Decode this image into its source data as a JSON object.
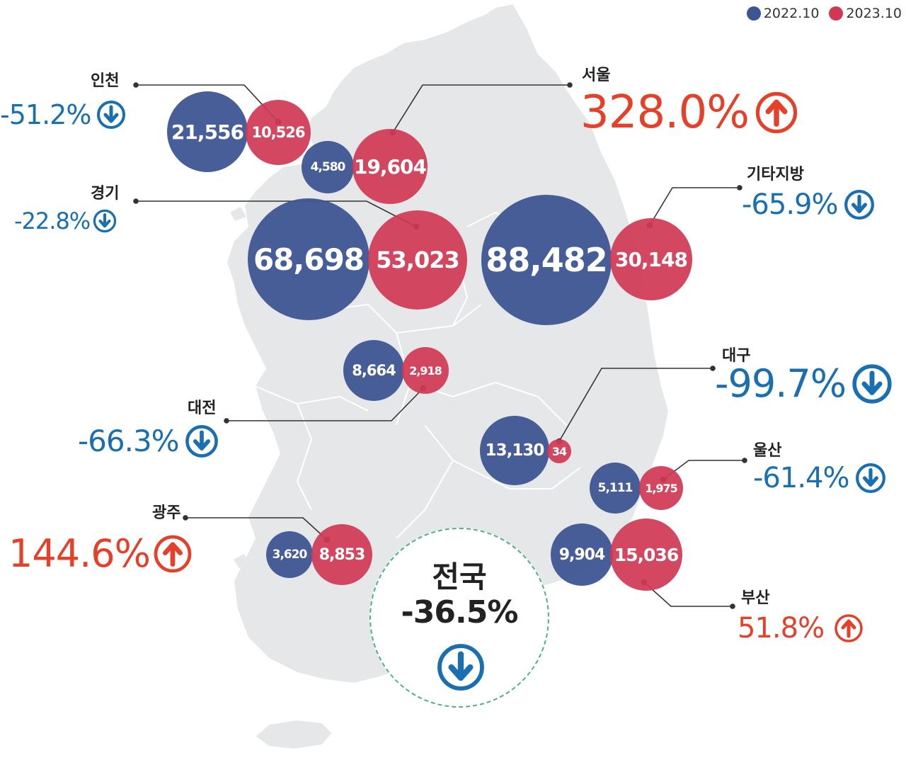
{
  "legend": {
    "series_2022": {
      "label": "2022.10",
      "color": "#3e5594"
    },
    "series_2023": {
      "label": "2023.10",
      "color": "#d03954"
    }
  },
  "national": {
    "name": "전국",
    "change": "-36.5%",
    "direction": "down"
  },
  "regions": {
    "incheon": {
      "name": "인천",
      "v2022": "21,556",
      "v2023": "10,526",
      "change": "-51.2%",
      "direction": "down"
    },
    "seoul": {
      "name": "서울",
      "v2022": "4,580",
      "v2023": "19,604",
      "change": "328.0%",
      "direction": "up"
    },
    "gyeonggi": {
      "name": "경기",
      "v2022": "68,698",
      "v2023": "53,023",
      "change": "-22.8%",
      "direction": "down"
    },
    "other": {
      "name": "기타지방",
      "v2022": "88,482",
      "v2023": "30,148",
      "change": "-65.9%",
      "direction": "down"
    },
    "daejeon": {
      "name": "대전",
      "v2022": "8,664",
      "v2023": "2,918",
      "change": "-66.3%",
      "direction": "down"
    },
    "daegu": {
      "name": "대구",
      "v2022": "13,130",
      "v2023": "34",
      "change": "-99.7%",
      "direction": "down"
    },
    "ulsan": {
      "name": "울산",
      "v2022": "5,111",
      "v2023": "1,975",
      "change": "-61.4%",
      "direction": "down"
    },
    "gwangju": {
      "name": "광주",
      "v2022": "3,620",
      "v2023": "8,853",
      "change": "144.6%",
      "direction": "up"
    },
    "busan": {
      "name": "부산",
      "v2022": "9,904",
      "v2023": "15,036",
      "change": "51.8%",
      "direction": "up"
    }
  },
  "colors": {
    "up": "#e5402a",
    "down": "#1a6fb0",
    "map_land": "#e6e7e8",
    "map_border": "#ffffff",
    "leader_line": "#333333"
  }
}
